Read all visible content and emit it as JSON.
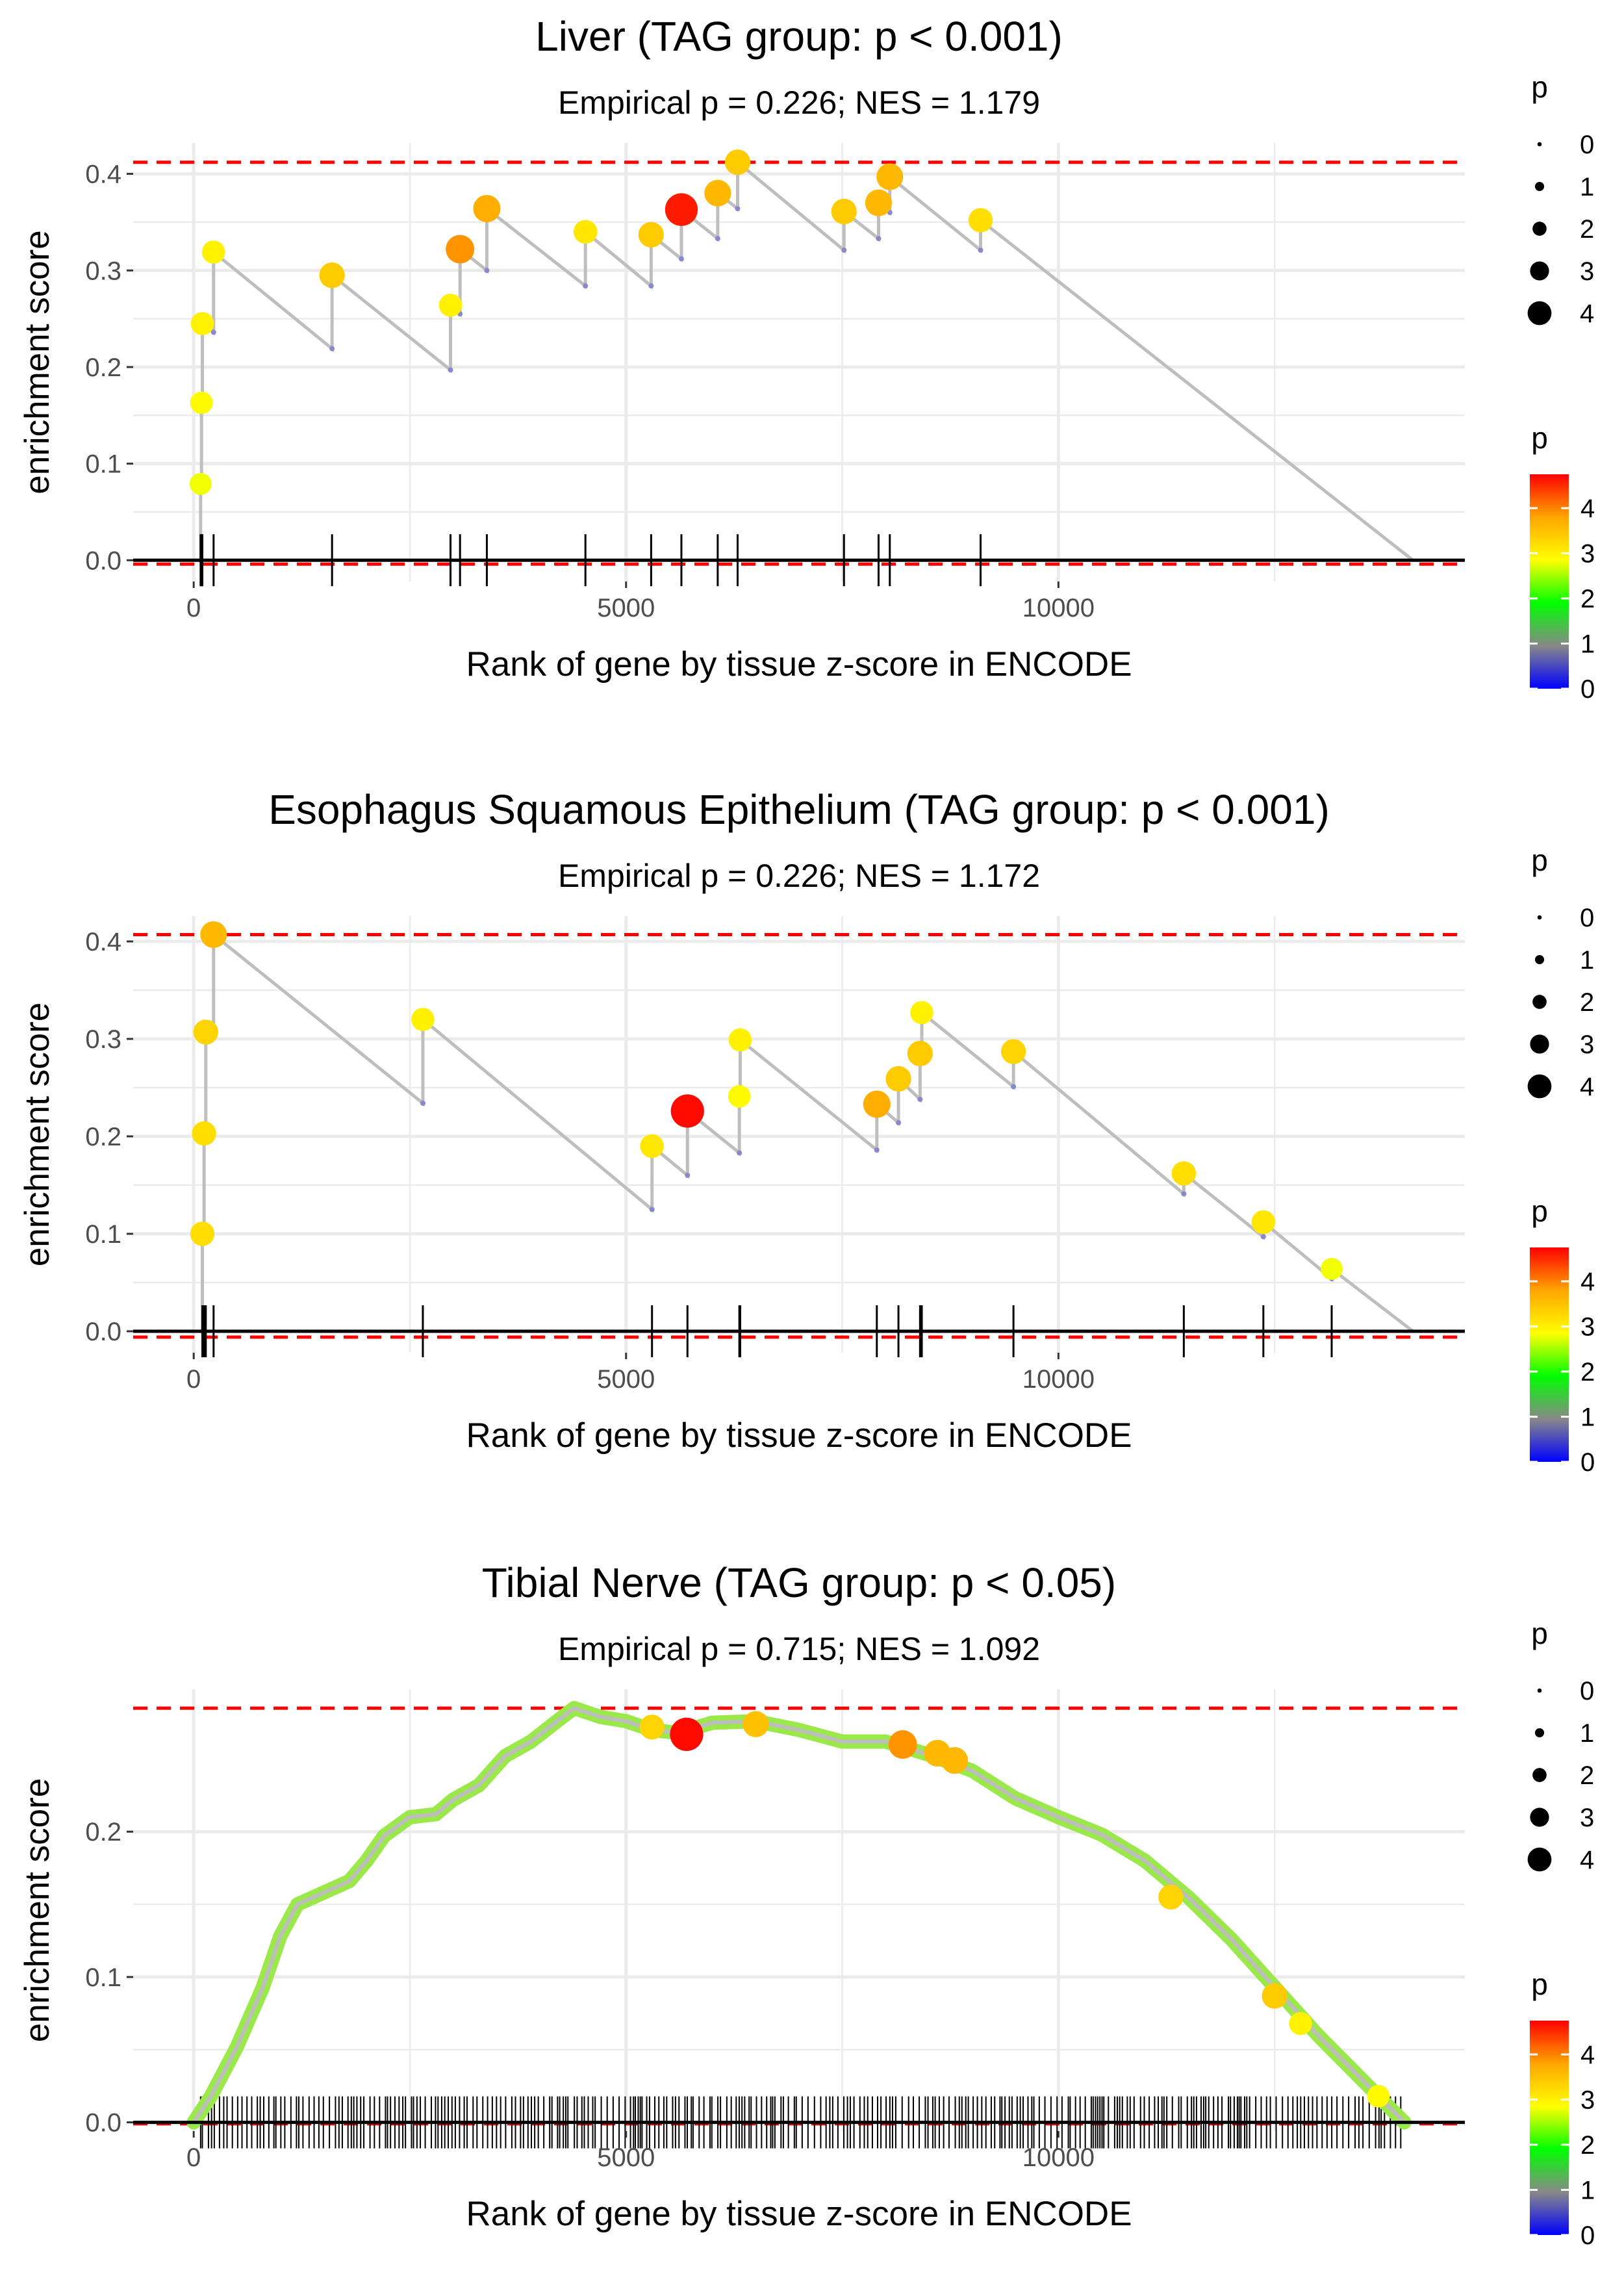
{
  "colors": {
    "ref_line": "#ff0000",
    "walk_line": "#bebebe",
    "grid": "#ebebeb",
    "scale": [
      "#0000ff",
      "#888888",
      "#00ff00",
      "#ffff00",
      "#ffa500",
      "#ff0000"
    ]
  },
  "chart_data": [
    {
      "type": "scatter",
      "title": "Liver (TAG group: p < 0.001)",
      "subtitle": "Empirical p = 0.226; NES = 1.179",
      "xlabel": "Rank of gene by tissue z-score in ENCODE",
      "ylabel": "enrichment score",
      "xlim": [
        -700,
        14700
      ],
      "ylim": [
        -0.022,
        0.432
      ],
      "xticks": [
        0,
        5000,
        10000
      ],
      "xtick_labels": [
        "0",
        "5000",
        "10000"
      ],
      "yticks": [
        0.0,
        0.1,
        0.2,
        0.3,
        0.4
      ],
      "ytick_labels": [
        "0.0",
        "0.1",
        "0.2",
        "0.3",
        "0.4"
      ],
      "max_es": 0.412,
      "min_es": -0.004,
      "n_genes": 14100,
      "hits": [
        {
          "rank": 80,
          "before": 0.0,
          "es": 0.079,
          "p": 2.8
        },
        {
          "rank": 90,
          "before": 0.079,
          "es": 0.163,
          "p": 2.9
        },
        {
          "rank": 100,
          "before": 0.163,
          "es": 0.245,
          "p": 3.0
        },
        {
          "rank": 230,
          "before": 0.236,
          "es": 0.319,
          "p": 3.0
        },
        {
          "rank": 1600,
          "before": 0.219,
          "es": 0.295,
          "p": 3.4
        },
        {
          "rank": 2970,
          "before": 0.197,
          "es": 0.264,
          "p": 3.0
        },
        {
          "rank": 3080,
          "before": 0.255,
          "es": 0.322,
          "p": 3.9
        },
        {
          "rank": 3390,
          "before": 0.3,
          "es": 0.364,
          "p": 3.7
        },
        {
          "rank": 4530,
          "before": 0.284,
          "es": 0.34,
          "p": 3.1
        },
        {
          "rank": 5290,
          "before": 0.284,
          "es": 0.337,
          "p": 3.4
        },
        {
          "rank": 5640,
          "before": 0.312,
          "es": 0.363,
          "p": 4.6
        },
        {
          "rank": 6060,
          "before": 0.333,
          "es": 0.38,
          "p": 3.6
        },
        {
          "rank": 6290,
          "before": 0.364,
          "es": 0.412,
          "p": 3.4
        },
        {
          "rank": 7520,
          "before": 0.321,
          "es": 0.361,
          "p": 3.4
        },
        {
          "rank": 7920,
          "before": 0.333,
          "es": 0.37,
          "p": 3.6
        },
        {
          "rank": 8050,
          "before": 0.36,
          "es": 0.397,
          "p": 3.6
        },
        {
          "rank": 9100,
          "before": 0.321,
          "es": 0.352,
          "p": 3.2
        }
      ],
      "legend_size": {
        "title": "p",
        "labels": [
          "0",
          "1",
          "2",
          "3",
          "4"
        ],
        "values": [
          0,
          1,
          2,
          3,
          4
        ]
      },
      "legend_color": {
        "title": "p",
        "labels": [
          "4",
          "3",
          "2",
          "1",
          "0"
        ],
        "values": [
          4,
          3,
          2,
          1,
          0
        ],
        "max": 4.75
      }
    },
    {
      "type": "scatter",
      "title": "Esophagus Squamous Epithelium (TAG group: p < 0.001)",
      "subtitle": "Empirical p = 0.226; NES = 1.172",
      "xlabel": "Rank of gene by tissue z-score in ENCODE",
      "ylabel": "enrichment score",
      "xlim": [
        -700,
        14700
      ],
      "ylim": [
        -0.022,
        0.426
      ],
      "xticks": [
        0,
        5000,
        10000
      ],
      "xtick_labels": [
        "0",
        "5000",
        "10000"
      ],
      "yticks": [
        0.0,
        0.1,
        0.2,
        0.3,
        0.4
      ],
      "ytick_labels": [
        "0.0",
        "0.1",
        "0.2",
        "0.3",
        "0.4"
      ],
      "max_es": 0.407,
      "min_es": -0.006,
      "n_genes": 14100,
      "hits": [
        {
          "rank": 100,
          "before": 0.0,
          "es": 0.1,
          "p": 3.2
        },
        {
          "rank": 120,
          "before": 0.1,
          "es": 0.203,
          "p": 3.2
        },
        {
          "rank": 140,
          "before": 0.203,
          "es": 0.307,
          "p": 3.3
        },
        {
          "rank": 230,
          "before": 0.305,
          "es": 0.407,
          "p": 3.6
        },
        {
          "rank": 2650,
          "before": 0.234,
          "es": 0.32,
          "p": 3.0
        },
        {
          "rank": 5300,
          "before": 0.125,
          "es": 0.19,
          "p": 3.1
        },
        {
          "rank": 5710,
          "before": 0.16,
          "es": 0.226,
          "p": 4.7
        },
        {
          "rank": 6310,
          "before": 0.183,
          "es": 0.241,
          "p": 2.9
        },
        {
          "rank": 6320,
          "before": 0.241,
          "es": 0.299,
          "p": 3.0
        },
        {
          "rank": 7900,
          "before": 0.186,
          "es": 0.233,
          "p": 3.7
        },
        {
          "rank": 8150,
          "before": 0.214,
          "es": 0.259,
          "p": 3.4
        },
        {
          "rank": 8400,
          "before": 0.238,
          "es": 0.285,
          "p": 3.4
        },
        {
          "rank": 8420,
          "before": 0.285,
          "es": 0.327,
          "p": 3.0
        },
        {
          "rank": 9480,
          "before": 0.251,
          "es": 0.287,
          "p": 3.3
        },
        {
          "rank": 11450,
          "before": 0.141,
          "es": 0.162,
          "p": 3.2
        },
        {
          "rank": 12370,
          "before": 0.097,
          "es": 0.112,
          "p": 3.1
        },
        {
          "rank": 13160,
          "before": 0.054,
          "es": 0.064,
          "p": 2.8
        }
      ],
      "legend_size": {
        "title": "p",
        "labels": [
          "0",
          "1",
          "2",
          "3",
          "4"
        ],
        "values": [
          0,
          1,
          2,
          3,
          4
        ]
      },
      "legend_color": {
        "title": "p",
        "labels": [
          "4",
          "3",
          "2",
          "1",
          "0"
        ],
        "values": [
          4,
          3,
          2,
          1,
          0
        ],
        "max": 4.75
      }
    },
    {
      "type": "line",
      "title": "Tibial Nerve (TAG group: p < 0.05)",
      "subtitle": "Empirical p = 0.715; NES = 1.092",
      "xlabel": "Rank of gene by tissue z-score in ENCODE",
      "ylabel": "enrichment score",
      "xlim": [
        -700,
        14700
      ],
      "ylim": [
        -0.006,
        0.298
      ],
      "xticks": [
        0,
        5000,
        10000
      ],
      "xtick_labels": [
        "0",
        "5000",
        "10000"
      ],
      "yticks": [
        0.0,
        0.1,
        0.2
      ],
      "ytick_labels": [
        "0.0",
        "0.1",
        "0.2"
      ],
      "max_es": 0.285,
      "min_es": -0.001,
      "n_genes": 14100,
      "x_end": 14000,
      "curve": [
        [
          0,
          0.0
        ],
        [
          200,
          0.018
        ],
        [
          500,
          0.052
        ],
        [
          800,
          0.093
        ],
        [
          1000,
          0.128
        ],
        [
          1200,
          0.15
        ],
        [
          1500,
          0.158
        ],
        [
          1800,
          0.166
        ],
        [
          2000,
          0.18
        ],
        [
          2200,
          0.197
        ],
        [
          2500,
          0.21
        ],
        [
          2800,
          0.212
        ],
        [
          3000,
          0.222
        ],
        [
          3300,
          0.232
        ],
        [
          3600,
          0.252
        ],
        [
          3900,
          0.262
        ],
        [
          4200,
          0.276
        ],
        [
          4400,
          0.285
        ],
        [
          4700,
          0.279
        ],
        [
          5000,
          0.276
        ],
        [
          5300,
          0.27
        ],
        [
          5600,
          0.268
        ],
        [
          6000,
          0.275
        ],
        [
          6500,
          0.276
        ],
        [
          7000,
          0.27
        ],
        [
          7500,
          0.262
        ],
        [
          8000,
          0.262
        ],
        [
          8500,
          0.253
        ],
        [
          9000,
          0.242
        ],
        [
          9500,
          0.223
        ],
        [
          10000,
          0.21
        ],
        [
          10500,
          0.198
        ],
        [
          11000,
          0.18
        ],
        [
          11500,
          0.155
        ],
        [
          12000,
          0.126
        ],
        [
          12500,
          0.093
        ],
        [
          13000,
          0.06
        ],
        [
          13500,
          0.03
        ],
        [
          14000,
          0.0
        ]
      ],
      "points": [
        {
          "rank": 5300,
          "es": 0.272,
          "p": 3.3
        },
        {
          "rank": 5700,
          "es": 0.267,
          "p": 4.7
        },
        {
          "rank": 6500,
          "es": 0.274,
          "p": 3.5
        },
        {
          "rank": 8200,
          "es": 0.26,
          "p": 3.9
        },
        {
          "rank": 8600,
          "es": 0.254,
          "p": 3.6
        },
        {
          "rank": 8800,
          "es": 0.249,
          "p": 3.6
        },
        {
          "rank": 11300,
          "es": 0.155,
          "p": 3.3
        },
        {
          "rank": 12500,
          "es": 0.087,
          "p": 3.4
        },
        {
          "rank": 12800,
          "es": 0.068,
          "p": 3.0
        },
        {
          "rank": 13700,
          "es": 0.018,
          "p": 2.9
        }
      ],
      "legend_size": {
        "title": "p",
        "labels": [
          "0",
          "1",
          "2",
          "3",
          "4"
        ],
        "values": [
          0,
          1,
          2,
          3,
          4
        ]
      },
      "legend_color": {
        "title": "p",
        "labels": [
          "4",
          "3",
          "2",
          "1",
          "0"
        ],
        "values": [
          4,
          3,
          2,
          1,
          0
        ],
        "max": 4.75
      }
    }
  ]
}
